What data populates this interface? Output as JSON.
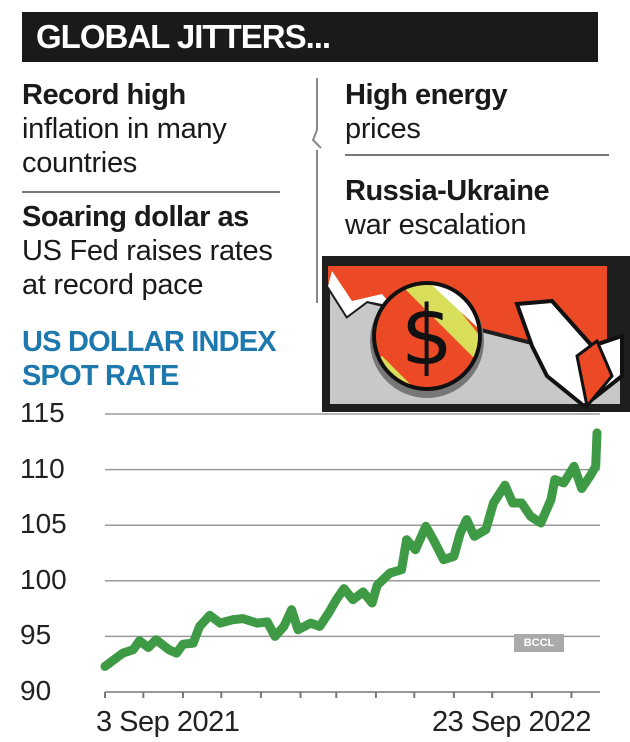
{
  "header": {
    "title": "GLOBAL JITTERS..."
  },
  "left_points": [
    {
      "bold": "Record high",
      "lines": [
        "inflation in many",
        "countries"
      ]
    },
    {
      "bold": "Soaring dollar as",
      "lines": [
        "US Fed raises rates",
        "at record pace"
      ]
    }
  ],
  "right_points": [
    {
      "bold": "High energy",
      "lines": [
        "prices"
      ]
    },
    {
      "bold": "Russia-Ukraine",
      "lines": [
        "war escalation"
      ]
    }
  ],
  "illustration": {
    "icon": "dollar-coin-pointing-hand-icon",
    "symbol": "$"
  },
  "watermark": "BCCL",
  "colors": {
    "title_bg": "#1a1a1a",
    "heading": "#1d78ae",
    "line": "#3e9a45",
    "illustration_red": "#ec4a26",
    "illustration_yellow": "#d9df5a"
  },
  "chart_data": {
    "type": "line",
    "title": "US DOLLAR INDEX SPOT RATE",
    "title_lines": [
      "US DOLLAR INDEX",
      "SPOT RATE"
    ],
    "xlabel": "",
    "ylabel": "",
    "ylim": [
      90,
      115
    ],
    "yticks": [
      "115",
      "110",
      "105",
      "100",
      "95",
      "90"
    ],
    "xlim": [
      "2021-09-03",
      "2022-09-23"
    ],
    "xtick_labels": [
      "3 Sep 2021",
      "23 Sep 2022"
    ],
    "grid": true,
    "series": [
      {
        "x": [
          "2021-09-03",
          "2021-09-10",
          "2021-09-17",
          "2021-09-25",
          "2021-09-30",
          "2021-10-07",
          "2021-10-13",
          "2021-10-23",
          "2021-10-29",
          "2021-11-03",
          "2021-11-11",
          "2021-11-16",
          "2021-11-24",
          "2021-12-02",
          "2021-12-12",
          "2021-12-20",
          "2021-12-31",
          "2022-01-08",
          "2022-01-14",
          "2022-01-21",
          "2022-01-27",
          "2022-02-01",
          "2022-02-11",
          "2022-02-18",
          "2022-02-25",
          "2022-03-03",
          "2022-03-09",
          "2022-03-16",
          "2022-03-24",
          "2022-03-31",
          "2022-04-04",
          "2022-04-14",
          "2022-04-23",
          "2022-04-27",
          "2022-05-04",
          "2022-05-12",
          "2022-05-18",
          "2022-05-26",
          "2022-06-03",
          "2022-06-08",
          "2022-06-13",
          "2022-06-19",
          "2022-06-28",
          "2022-07-04",
          "2022-07-13",
          "2022-07-19",
          "2022-07-26",
          "2022-08-02",
          "2022-08-10",
          "2022-08-18",
          "2022-08-21",
          "2022-08-28",
          "2022-09-05",
          "2022-09-11",
          "2022-09-18",
          "2022-09-22",
          "2022-09-23"
        ],
        "values": [
          92.3,
          92.9,
          93.5,
          93.8,
          94.6,
          94.0,
          94.7,
          93.8,
          93.5,
          94.3,
          94.4,
          95.9,
          96.9,
          96.2,
          96.5,
          96.6,
          96.2,
          96.3,
          95.0,
          95.9,
          97.4,
          95.6,
          96.2,
          95.9,
          97.1,
          98.3,
          99.3,
          98.3,
          99.0,
          98.0,
          99.6,
          100.7,
          101.0,
          103.7,
          102.8,
          104.9,
          103.7,
          101.9,
          102.2,
          104.3,
          105.5,
          104.0,
          104.6,
          107.0,
          108.6,
          107.0,
          107.0,
          105.8,
          105.2,
          107.3,
          109.1,
          108.8,
          110.3,
          108.3,
          109.5,
          110.3,
          113.3
        ]
      }
    ]
  }
}
